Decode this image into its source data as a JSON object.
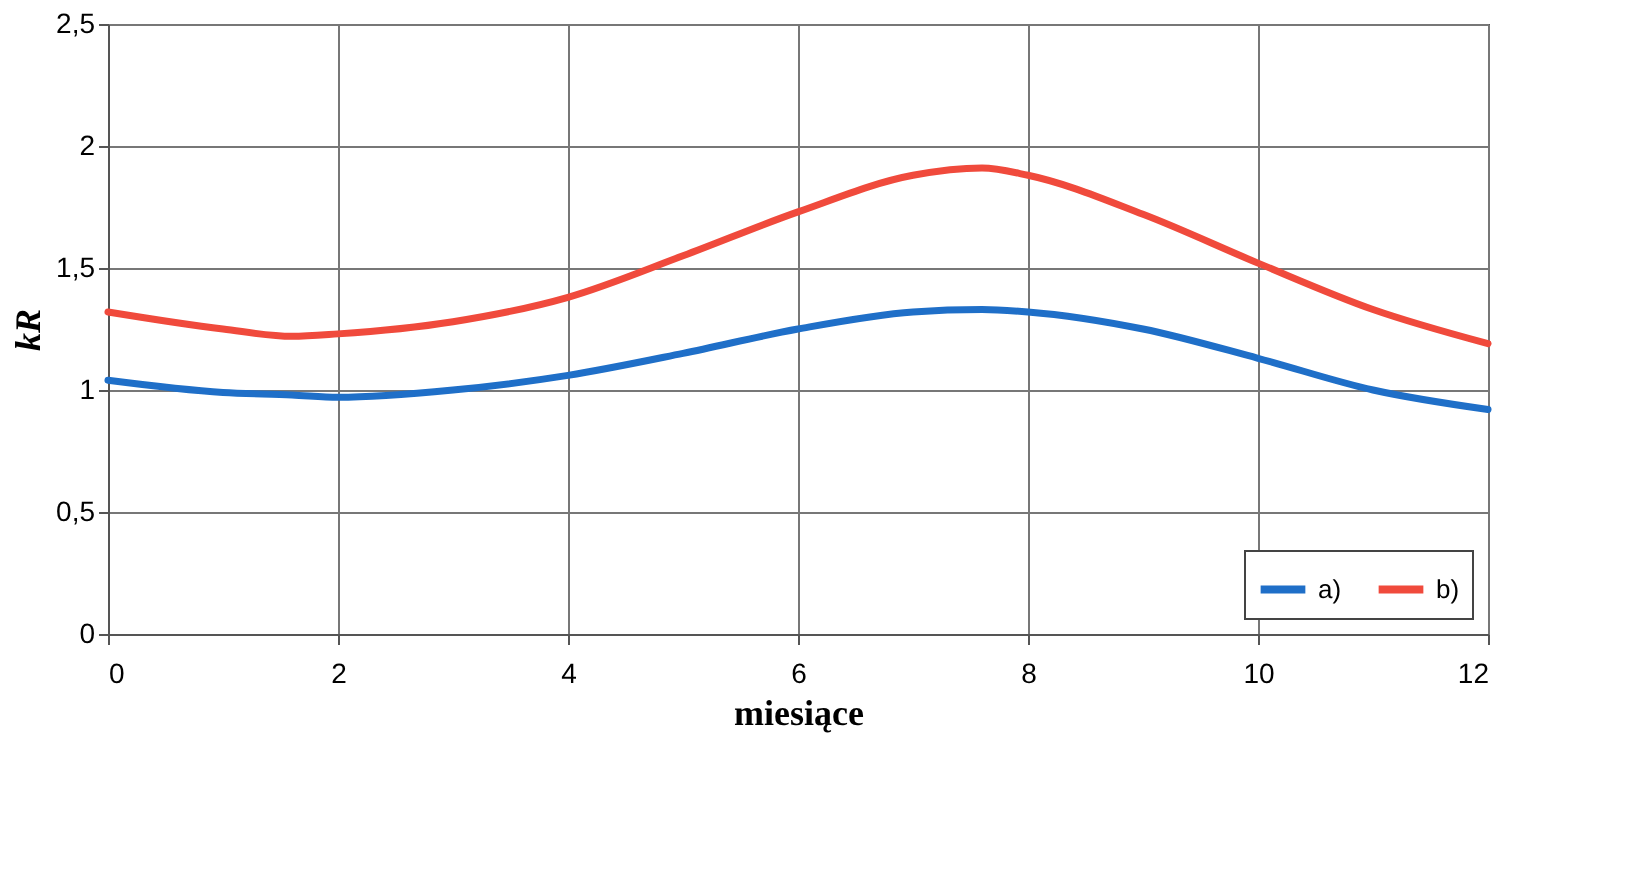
{
  "chart_data": {
    "type": "line",
    "xlabel": "miesiące",
    "ylabel": "kR",
    "x": [
      0,
      1,
      1.6,
      2,
      3,
      4,
      5,
      6,
      7,
      7.6,
      8,
      9,
      10,
      11,
      12
    ],
    "series": [
      {
        "name": "a)",
        "color": "#1f6fc8",
        "values": [
          1.04,
          0.99,
          0.98,
          0.97,
          1.0,
          1.06,
          1.15,
          1.25,
          1.32,
          1.33,
          1.32,
          1.25,
          1.13,
          1.0,
          0.92
        ]
      },
      {
        "name": "b)",
        "color": "#f04a3c",
        "values": [
          1.32,
          1.25,
          1.22,
          1.23,
          1.28,
          1.38,
          1.55,
          1.73,
          1.88,
          1.91,
          1.88,
          1.72,
          1.52,
          1.33,
          1.19
        ]
      }
    ],
    "xlim": [
      0,
      12
    ],
    "xticks": [
      0,
      2,
      4,
      6,
      8,
      10,
      12
    ],
    "ylim": [
      0,
      2.5
    ],
    "yticks": [
      0,
      {
        "value": 0.5,
        "label": "0,5"
      },
      1,
      {
        "value": 1.5,
        "label": "1,5"
      },
      2,
      {
        "value": 2.5,
        "label": "2,5"
      }
    ],
    "grid": true,
    "legend": "bottom right",
    "marker": "none",
    "line_style": "solid"
  }
}
